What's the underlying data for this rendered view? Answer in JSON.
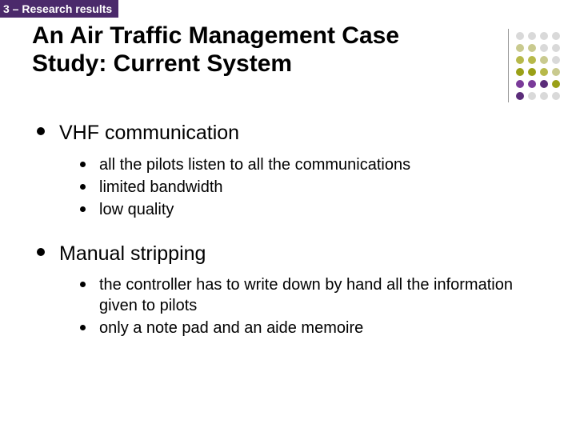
{
  "tag": {
    "text": "3 – Research results",
    "bg": "#4b2a6b",
    "fg": "#ffffff"
  },
  "title": {
    "text": "An Air Traffic Management Case Study: Current System",
    "color": "#000000",
    "fontsize": 30
  },
  "decor": {
    "dot_colors": [
      "#d9d9d9",
      "#d9d9d9",
      "#d9d9d9",
      "#d9d9d9",
      "#c9ca8f",
      "#c9ca8f",
      "#d9d9d9",
      "#d9d9d9",
      "#b7b94a",
      "#b7b94a",
      "#c9ca8f",
      "#d9d9d9",
      "#9aa017",
      "#9aa017",
      "#b7b94a",
      "#c9ca8f",
      "#7a3a99",
      "#7a3a99",
      "#5b2d7a",
      "#9aa017",
      "#5b2d7a",
      "#d9d9d9",
      "#d9d9d9",
      "#d9d9d9"
    ]
  },
  "bullets": [
    {
      "label": "VHF communication",
      "items": [
        "all the pilots listen to all the communications",
        "limited bandwidth",
        "low quality"
      ]
    },
    {
      "label": "Manual stripping",
      "items": [
        "the controller has to write down by hand all the information given to pilots",
        "only a note pad and an aide memoire"
      ]
    }
  ]
}
